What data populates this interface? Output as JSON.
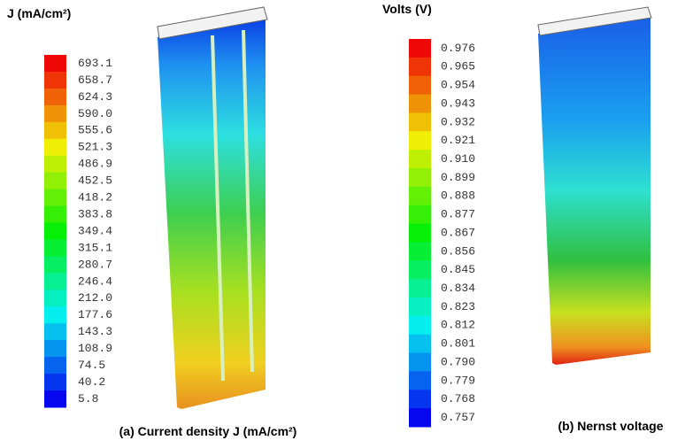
{
  "panels": [
    {
      "legend_title": "J (mA/cm²)",
      "labels": [
        "693.1",
        "658.7",
        "624.3",
        "590.0",
        "555.6",
        "521.3",
        "486.9",
        "452.5",
        "418.2",
        "383.8",
        "349.4",
        "315.1",
        "280.7",
        "246.4",
        "212.0",
        "177.6",
        "143.3",
        "108.9",
        "74.5",
        "40.2",
        "5.8"
      ],
      "caption": "(a) Current density J (mA/cm²)"
    },
    {
      "legend_title": "Volts (V)",
      "labels": [
        "0.976",
        "0.965",
        "0.954",
        "0.943",
        "0.932",
        "0.921",
        "0.910",
        "0.899",
        "0.888",
        "0.877",
        "0.867",
        "0.856",
        "0.845",
        "0.834",
        "0.823",
        "0.812",
        "0.801",
        "0.790",
        "0.779",
        "0.768",
        "0.757"
      ],
      "caption": "(b) Nernst voltage"
    }
  ]
}
